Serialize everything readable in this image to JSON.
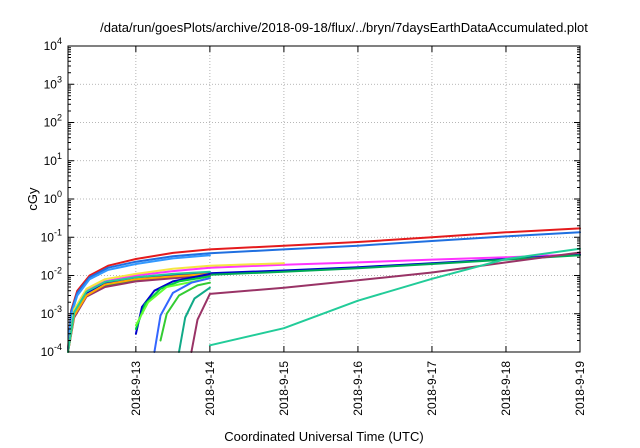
{
  "chart_data": {
    "type": "line",
    "title": "/data/run/goesPlots/archive/2018-09-18/flux/../bryn/7daysEarthDataAccumulated.plot",
    "xlabel": "Coordinated Universal Time (UTC)",
    "ylabel": "cGy",
    "x_scale": "time",
    "y_scale": "log",
    "xlim": [
      "2018-09-12T02:00",
      "2018-09-19T00:00"
    ],
    "ylim": [
      0.0001,
      10000
    ],
    "x_ticks": [
      "2018-9-13",
      "2018-9-14",
      "2018-9-15",
      "2018-9-16",
      "2018-9-17",
      "2018-9-18",
      "2018-9-19"
    ],
    "y_ticks": [
      {
        "base": "10",
        "exp": "-4",
        "value": 0.0001
      },
      {
        "base": "10",
        "exp": "-3",
        "value": 0.001
      },
      {
        "base": "10",
        "exp": "-2",
        "value": 0.01
      },
      {
        "base": "10",
        "exp": "-1",
        "value": 0.1
      },
      {
        "base": "10",
        "exp": "0",
        "value": 1
      },
      {
        "base": "10",
        "exp": "1",
        "value": 10
      },
      {
        "base": "10",
        "exp": "2",
        "value": 100
      },
      {
        "base": "10",
        "exp": "3",
        "value": 1000
      },
      {
        "base": "10",
        "exp": "4",
        "value": 10000
      }
    ],
    "grid": true,
    "legend": "none",
    "series": [
      {
        "color": "#e41a1c",
        "points": [
          [
            "2018-09-12T02:00",
            0.00012
          ],
          [
            "2018-09-12T03:00",
            0.0012
          ],
          [
            "2018-09-12T05:00",
            0.004
          ],
          [
            "2018-09-12T09:00",
            0.01
          ],
          [
            "2018-09-12T15:00",
            0.018
          ],
          [
            "2018-09-13T00:00",
            0.027
          ],
          [
            "2018-09-13T12:00",
            0.039
          ],
          [
            "2018-09-14T00:00",
            0.048
          ],
          [
            "2018-09-15T00:00",
            0.06
          ],
          [
            "2018-09-16T00:00",
            0.075
          ],
          [
            "2018-09-17T00:00",
            0.1
          ],
          [
            "2018-09-18T00:00",
            0.135
          ],
          [
            "2018-09-19T00:00",
            0.17
          ]
        ]
      },
      {
        "color": "#1f6fe0",
        "points": [
          [
            "2018-09-12T02:00",
            0.00011
          ],
          [
            "2018-09-12T03:00",
            0.0011
          ],
          [
            "2018-09-12T05:00",
            0.0035
          ],
          [
            "2018-09-12T09:00",
            0.009
          ],
          [
            "2018-09-12T15:00",
            0.016
          ],
          [
            "2018-09-13T00:00",
            0.023
          ],
          [
            "2018-09-13T12:00",
            0.032
          ],
          [
            "2018-09-14T00:00",
            0.038
          ],
          [
            "2018-09-15T00:00",
            0.048
          ],
          [
            "2018-09-16T00:00",
            0.06
          ],
          [
            "2018-09-17T00:00",
            0.08
          ],
          [
            "2018-09-18T00:00",
            0.105
          ],
          [
            "2018-09-19T00:00",
            0.135
          ]
        ]
      },
      {
        "color": "#3399ff",
        "points": [
          [
            "2018-09-12T02:00",
            0.0001
          ],
          [
            "2018-09-12T03:00",
            0.0009
          ],
          [
            "2018-09-12T05:00",
            0.003
          ],
          [
            "2018-09-12T09:00",
            0.008
          ],
          [
            "2018-09-12T15:00",
            0.014
          ],
          [
            "2018-09-13T00:00",
            0.02
          ],
          [
            "2018-09-13T12:00",
            0.028
          ],
          [
            "2018-09-14T00:00",
            0.034
          ]
        ]
      },
      {
        "color": "#ff33ff",
        "points": [
          [
            "2018-09-12T02:00",
            0.0001
          ],
          [
            "2018-09-12T04:00",
            0.0012
          ],
          [
            "2018-09-12T08:00",
            0.004
          ],
          [
            "2018-09-12T14:00",
            0.007
          ],
          [
            "2018-09-13T00:00",
            0.01
          ],
          [
            "2018-09-13T12:00",
            0.013
          ],
          [
            "2018-09-14T00:00",
            0.016
          ],
          [
            "2018-09-15T00:00",
            0.019
          ],
          [
            "2018-09-16T00:00",
            0.022
          ],
          [
            "2018-09-17T00:00",
            0.026
          ],
          [
            "2018-09-18T00:00",
            0.03
          ],
          [
            "2018-09-19T00:00",
            0.036
          ]
        ]
      },
      {
        "color": "#f5e642",
        "points": [
          [
            "2018-09-12T02:00",
            0.0001
          ],
          [
            "2018-09-12T04:00",
            0.0013
          ],
          [
            "2018-09-12T08:00",
            0.0045
          ],
          [
            "2018-09-12T14:00",
            0.008
          ],
          [
            "2018-09-13T00:00",
            0.011
          ],
          [
            "2018-09-13T12:00",
            0.015
          ],
          [
            "2018-09-14T00:00",
            0.018
          ],
          [
            "2018-09-15T00:00",
            0.021
          ]
        ]
      },
      {
        "color": "#0000cc",
        "points": [
          [
            "2018-09-12T02:00",
            0.0001
          ],
          [
            "2018-09-12T04:00",
            0.001
          ],
          [
            "2018-09-12T08:00",
            0.0035
          ],
          [
            "2018-09-12T14:00",
            0.0065
          ],
          [
            "2018-09-13T00:00",
            0.0085
          ],
          [
            "2018-09-13T12:00",
            0.01
          ],
          [
            "2018-09-14T00:00",
            0.0115
          ],
          [
            "2018-09-15T00:00",
            0.0135
          ],
          [
            "2018-09-16T00:00",
            0.0165
          ],
          [
            "2018-09-17T00:00",
            0.021
          ],
          [
            "2018-09-18T00:00",
            0.027
          ],
          [
            "2018-09-19T00:00",
            0.035
          ]
        ]
      },
      {
        "color": "#00aa55",
        "points": [
          [
            "2018-09-12T02:00",
            0.0001
          ],
          [
            "2018-09-12T04:00",
            0.0009
          ],
          [
            "2018-09-12T08:00",
            0.003
          ],
          [
            "2018-09-12T14:00",
            0.0055
          ],
          [
            "2018-09-13T00:00",
            0.0075
          ],
          [
            "2018-09-13T12:00",
            0.009
          ],
          [
            "2018-09-14T00:00",
            0.0105
          ],
          [
            "2018-09-15T00:00",
            0.0125
          ],
          [
            "2018-09-16T00:00",
            0.0155
          ],
          [
            "2018-09-17T00:00",
            0.02
          ],
          [
            "2018-09-18T00:00",
            0.026
          ],
          [
            "2018-09-19T00:00",
            0.034
          ]
        ]
      },
      {
        "color": "#993366",
        "points": [
          [
            "2018-09-12T02:00",
            0.0001
          ],
          [
            "2018-09-12T04:00",
            0.0008
          ],
          [
            "2018-09-12T08:00",
            0.0028
          ],
          [
            "2018-09-12T14:00",
            0.005
          ],
          [
            "2018-09-13T00:00",
            0.007
          ],
          [
            "2018-09-13T12:00",
            0.0085
          ],
          [
            "2018-09-14T00:00",
            0.01
          ]
        ]
      },
      {
        "color": "#ffaa00",
        "points": [
          [
            "2018-09-12T02:00",
            0.0001
          ],
          [
            "2018-09-12T04:00",
            0.0009
          ],
          [
            "2018-09-12T08:00",
            0.003
          ],
          [
            "2018-09-12T14:00",
            0.0058
          ],
          [
            "2018-09-13T00:00",
            0.008
          ],
          [
            "2018-09-13T12:00",
            0.0095
          ],
          [
            "2018-09-14T00:00",
            0.011
          ]
        ]
      },
      {
        "color": "#22cc99",
        "points": [
          [
            "2018-09-12T02:00",
            0.0001
          ],
          [
            "2018-09-12T04:00",
            0.0011
          ],
          [
            "2018-09-12T08:00",
            0.0038
          ],
          [
            "2018-09-12T14:00",
            0.0068
          ],
          [
            "2018-09-13T00:00",
            0.009
          ],
          [
            "2018-09-13T12:00",
            0.011
          ],
          [
            "2018-09-14T00:00",
            0.0125
          ]
        ]
      },
      {
        "color": "#0000cc",
        "points": [
          [
            "2018-09-13T00:00",
            0.0003
          ],
          [
            "2018-09-13T02:00",
            0.0015
          ],
          [
            "2018-09-13T06:00",
            0.004
          ],
          [
            "2018-09-13T12:00",
            0.007
          ],
          [
            "2018-09-14T00:00",
            0.011
          ]
        ]
      },
      {
        "color": "#00cc44",
        "points": [
          [
            "2018-09-13T00:00",
            0.0004
          ],
          [
            "2018-09-13T03:00",
            0.0018
          ],
          [
            "2018-09-13T08:00",
            0.0045
          ],
          [
            "2018-09-13T14:00",
            0.007
          ],
          [
            "2018-09-14T00:00",
            0.0095
          ]
        ]
      },
      {
        "color": "#66ff33",
        "points": [
          [
            "2018-09-13T00:00",
            0.0005
          ],
          [
            "2018-09-13T04:00",
            0.002
          ],
          [
            "2018-09-13T10:00",
            0.005
          ],
          [
            "2018-09-14T00:00",
            0.0085
          ]
        ]
      },
      {
        "color": "#3366ff",
        "points": [
          [
            "2018-09-13T06:00",
            0.0001
          ],
          [
            "2018-09-13T08:00",
            0.0009
          ],
          [
            "2018-09-13T12:00",
            0.0035
          ],
          [
            "2018-09-13T18:00",
            0.0065
          ],
          [
            "2018-09-14T00:00",
            0.0085
          ]
        ]
      },
      {
        "color": "#33cc33",
        "points": [
          [
            "2018-09-13T08:00",
            0.0002
          ],
          [
            "2018-09-13T10:00",
            0.001
          ],
          [
            "2018-09-13T14:00",
            0.003
          ],
          [
            "2018-09-13T20:00",
            0.0055
          ],
          [
            "2018-09-14T00:00",
            0.0065
          ]
        ]
      },
      {
        "color": "#11aa88",
        "points": [
          [
            "2018-09-13T14:00",
            0.0001
          ],
          [
            "2018-09-13T16:00",
            0.0008
          ],
          [
            "2018-09-13T19:00",
            0.0025
          ],
          [
            "2018-09-14T00:00",
            0.0048
          ]
        ]
      },
      {
        "color": "#993366",
        "points": [
          [
            "2018-09-13T18:00",
            0.0001
          ],
          [
            "2018-09-13T20:00",
            0.0007
          ],
          [
            "2018-09-14T00:00",
            0.0033
          ],
          [
            "2018-09-15T00:00",
            0.0048
          ],
          [
            "2018-09-16T00:00",
            0.0075
          ],
          [
            "2018-09-17T00:00",
            0.012
          ],
          [
            "2018-09-18T00:00",
            0.022
          ],
          [
            "2018-09-19T00:00",
            0.04
          ]
        ]
      },
      {
        "color": "#22cc99",
        "points": [
          [
            "2018-09-14T00:00",
            0.00015
          ],
          [
            "2018-09-15T00:00",
            0.00042
          ],
          [
            "2018-09-16T00:00",
            0.0022
          ],
          [
            "2018-09-17T00:00",
            0.0082
          ],
          [
            "2018-09-18T00:00",
            0.027
          ],
          [
            "2018-09-19T00:00",
            0.05
          ]
        ]
      }
    ]
  }
}
